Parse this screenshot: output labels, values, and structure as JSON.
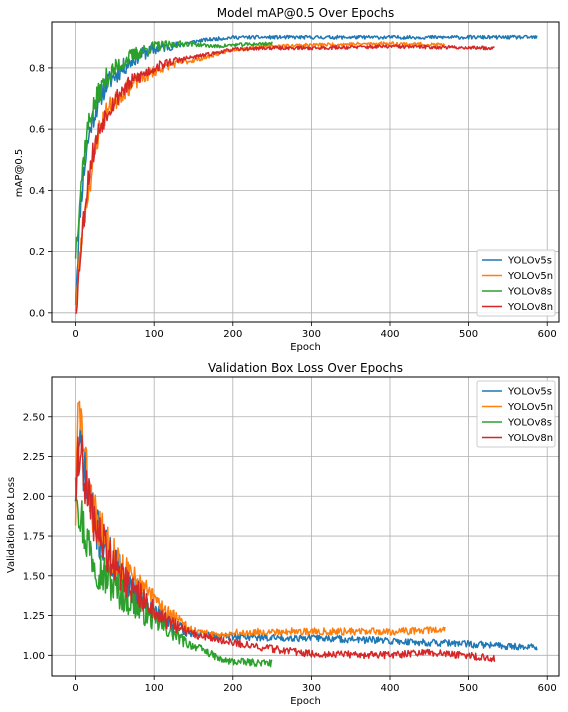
{
  "chart_data": [
    {
      "type": "line",
      "title": "Model mAP@0.5 Over Epochs",
      "xlabel": "Epoch",
      "ylabel": "mAP@0.5",
      "xlim": [
        -30,
        615
      ],
      "ylim": [
        -0.03,
        0.95
      ],
      "xticks": [
        0,
        100,
        200,
        300,
        400,
        500,
        600
      ],
      "yticks": [
        0.0,
        0.2,
        0.4,
        0.6,
        0.8
      ],
      "ytick_labels": [
        "0.0",
        "0.2",
        "0.4",
        "0.6",
        "0.8"
      ],
      "grid": true,
      "legend_position": "lower-right",
      "noise": 0.006,
      "series": [
        {
          "name": "YOLOv5s",
          "color": "#1f77b4",
          "seed": 11,
          "x": [
            0,
            3,
            6,
            10,
            15,
            20,
            30,
            40,
            60,
            80,
            100,
            120,
            140,
            160,
            180,
            200,
            240,
            300,
            400,
            500,
            587
          ],
          "values": [
            0.05,
            0.2,
            0.35,
            0.45,
            0.55,
            0.62,
            0.7,
            0.75,
            0.8,
            0.84,
            0.86,
            0.87,
            0.88,
            0.89,
            0.895,
            0.9,
            0.9,
            0.9,
            0.9,
            0.9,
            0.9
          ]
        },
        {
          "name": "YOLOv5n",
          "color": "#ff7f0e",
          "seed": 23,
          "x": [
            0,
            3,
            6,
            10,
            15,
            20,
            30,
            40,
            60,
            80,
            100,
            120,
            140,
            160,
            180,
            200,
            240,
            300,
            400,
            470
          ],
          "values": [
            0.03,
            0.1,
            0.2,
            0.3,
            0.38,
            0.45,
            0.6,
            0.66,
            0.72,
            0.76,
            0.79,
            0.81,
            0.82,
            0.83,
            0.845,
            0.86,
            0.87,
            0.875,
            0.88,
            0.875
          ]
        },
        {
          "name": "YOLOv8s",
          "color": "#2ca02c",
          "seed": 37,
          "x": [
            0,
            3,
            6,
            10,
            15,
            20,
            30,
            40,
            60,
            80,
            100,
            120,
            140,
            160,
            180,
            200,
            250
          ],
          "values": [
            0.2,
            0.3,
            0.4,
            0.5,
            0.6,
            0.65,
            0.72,
            0.77,
            0.82,
            0.85,
            0.87,
            0.875,
            0.88,
            0.875,
            0.87,
            0.875,
            0.88
          ]
        },
        {
          "name": "YOLOv8n",
          "color": "#d62728",
          "seed": 53,
          "x": [
            0,
            3,
            6,
            10,
            15,
            20,
            30,
            40,
            60,
            80,
            100,
            120,
            140,
            160,
            180,
            200,
            240,
            300,
            400,
            533
          ],
          "values": [
            0.02,
            0.08,
            0.2,
            0.3,
            0.42,
            0.5,
            0.6,
            0.66,
            0.73,
            0.77,
            0.8,
            0.82,
            0.83,
            0.84,
            0.85,
            0.86,
            0.865,
            0.865,
            0.87,
            0.865
          ]
        }
      ]
    },
    {
      "type": "line",
      "title": "Validation Box Loss Over Epochs",
      "xlabel": "Epoch",
      "ylabel": "Validation Box Loss",
      "xlim": [
        -30,
        615
      ],
      "ylim": [
        0.87,
        2.75
      ],
      "xticks": [
        0,
        100,
        200,
        300,
        400,
        500,
        600
      ],
      "yticks": [
        1.0,
        1.25,
        1.5,
        1.75,
        2.0,
        2.25,
        2.5
      ],
      "ytick_labels": [
        "1.00",
        "1.25",
        "1.50",
        "1.75",
        "2.00",
        "2.25",
        "2.50"
      ],
      "grid": true,
      "legend_position": "upper-right",
      "noise": 0.012,
      "series": [
        {
          "name": "YOLOv5s",
          "color": "#1f77b4",
          "seed": 71,
          "x": [
            0,
            3,
            6,
            10,
            15,
            20,
            30,
            40,
            60,
            80,
            100,
            120,
            140,
            160,
            180,
            200,
            250,
            300,
            400,
            500,
            587
          ],
          "values": [
            2.05,
            2.2,
            2.3,
            2.2,
            2.05,
            1.9,
            1.75,
            1.65,
            1.5,
            1.38,
            1.28,
            1.2,
            1.15,
            1.13,
            1.12,
            1.12,
            1.11,
            1.11,
            1.09,
            1.07,
            1.05
          ]
        },
        {
          "name": "YOLOv5n",
          "color": "#ff7f0e",
          "seed": 83,
          "x": [
            0,
            3,
            6,
            10,
            15,
            20,
            30,
            40,
            60,
            80,
            100,
            120,
            140,
            160,
            180,
            200,
            250,
            300,
            400,
            470
          ],
          "values": [
            1.9,
            2.5,
            2.55,
            2.3,
            2.1,
            1.95,
            1.8,
            1.7,
            1.55,
            1.45,
            1.35,
            1.26,
            1.18,
            1.14,
            1.13,
            1.14,
            1.15,
            1.15,
            1.15,
            1.16
          ]
        },
        {
          "name": "YOLOv8s",
          "color": "#2ca02c",
          "seed": 97,
          "x": [
            0,
            3,
            6,
            10,
            15,
            20,
            30,
            40,
            60,
            80,
            100,
            120,
            140,
            160,
            175,
            185,
            200,
            250
          ],
          "values": [
            2.2,
            2.0,
            1.9,
            1.8,
            1.72,
            1.65,
            1.55,
            1.48,
            1.38,
            1.3,
            1.22,
            1.15,
            1.08,
            1.04,
            1.0,
            0.97,
            0.96,
            0.95
          ]
        },
        {
          "name": "YOLOv8n",
          "color": "#d62728",
          "seed": 109,
          "x": [
            0,
            3,
            6,
            10,
            15,
            20,
            30,
            40,
            60,
            80,
            100,
            120,
            140,
            160,
            180,
            200,
            250,
            300,
            400,
            450,
            533
          ],
          "values": [
            2.05,
            2.3,
            2.3,
            2.15,
            2.0,
            1.9,
            1.75,
            1.65,
            1.5,
            1.38,
            1.28,
            1.2,
            1.15,
            1.12,
            1.1,
            1.08,
            1.04,
            1.01,
            1.0,
            1.02,
            0.98
          ]
        }
      ]
    }
  ]
}
